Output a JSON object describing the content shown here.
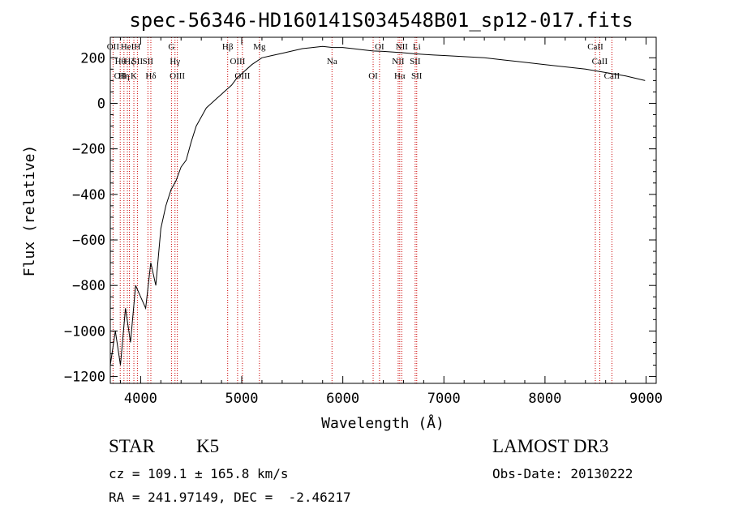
{
  "chart_data": {
    "type": "line",
    "title": "spec-56346-HD160141S034548B01_sp12-017.fits",
    "xlabel": "Wavelength (Å)",
    "ylabel": "Flux (relative)",
    "xlim": [
      3700,
      9100
    ],
    "ylim": [
      -1230,
      290
    ],
    "x_ticks": [
      4000,
      5000,
      6000,
      7000,
      8000,
      9000
    ],
    "y_ticks": [
      -1200,
      -1000,
      -800,
      -600,
      -400,
      -200,
      0,
      200
    ],
    "series": [
      {
        "x": [
          3700,
          3750,
          3800,
          3850,
          3900,
          3950,
          4000,
          4050,
          4100,
          4150,
          4200,
          4250,
          4300,
          4350,
          4400,
          4450,
          4500,
          4550,
          4600,
          4650,
          4700,
          4750,
          4800,
          4850,
          4900,
          4950,
          5000,
          5100,
          5200,
          5300,
          5400,
          5500,
          5600,
          5700,
          5800,
          5900,
          6000,
          6100,
          6200,
          6300,
          6400,
          6500,
          6600,
          6700,
          6800,
          6900,
          7000,
          7200,
          7400,
          7600,
          7800,
          8000,
          8200,
          8400,
          8600,
          8800,
          8990
        ],
        "y": [
          -1150,
          -1000,
          -1150,
          -900,
          -1050,
          -800,
          -850,
          -900,
          -700,
          -800,
          -550,
          -450,
          -380,
          -340,
          -280,
          -250,
          -170,
          -100,
          -60,
          -20,
          0,
          20,
          40,
          60,
          80,
          110,
          130,
          170,
          200,
          210,
          220,
          230,
          240,
          245,
          250,
          245,
          245,
          240,
          235,
          230,
          228,
          225,
          222,
          218,
          215,
          212,
          210,
          205,
          200,
          190,
          180,
          170,
          160,
          150,
          135,
          120,
          100
        ]
      }
    ],
    "lines": [
      {
        "x": 3727,
        "labels": [
          "OII"
        ]
      },
      {
        "x": 3798,
        "labels": [
          "Hθ",
          "OII"
        ]
      },
      {
        "x": 3835,
        "labels": [
          "Hη"
        ]
      },
      {
        "x": 3869,
        "labels": [
          "HeI"
        ]
      },
      {
        "x": 3889,
        "labels": [
          "Hζ"
        ]
      },
      {
        "x": 3933,
        "labels": [
          "K"
        ]
      },
      {
        "x": 3968,
        "labels": [
          "H",
          "SII"
        ]
      },
      {
        "x": 4072,
        "labels": [
          "SII"
        ]
      },
      {
        "x": 4101,
        "labels": [
          "Hδ"
        ]
      },
      {
        "x": 4305,
        "labels": [
          "G"
        ]
      },
      {
        "x": 4340,
        "labels": [
          "Hγ"
        ]
      },
      {
        "x": 4363,
        "labels": [
          "OIII"
        ]
      },
      {
        "x": 4861,
        "labels": [
          "Hβ"
        ]
      },
      {
        "x": 4959,
        "labels": [
          "OIII"
        ]
      },
      {
        "x": 5007,
        "labels": [
          "OIII"
        ]
      },
      {
        "x": 5175,
        "labels": [
          "Mg"
        ]
      },
      {
        "x": 5893,
        "labels": [
          "Na"
        ]
      },
      {
        "x": 6300,
        "labels": [
          "OI"
        ]
      },
      {
        "x": 6363,
        "labels": [
          "OI"
        ]
      },
      {
        "x": 6548,
        "labels": [
          "NII"
        ]
      },
      {
        "x": 6563,
        "labels": [
          "Hα"
        ]
      },
      {
        "x": 6583,
        "labels": [
          "NII"
        ]
      },
      {
        "x": 6716,
        "labels": [
          "SII"
        ]
      },
      {
        "x": 6731,
        "labels": [
          "SII",
          "Li"
        ]
      },
      {
        "x": 8498,
        "labels": [
          "CaII"
        ]
      },
      {
        "x": 8542,
        "labels": [
          "CaII"
        ]
      },
      {
        "x": 8662,
        "labels": [
          "CaII"
        ]
      }
    ],
    "grid": false
  },
  "info": {
    "object_class": "STAR",
    "subclass": "K5",
    "survey": "LAMOST DR3",
    "cz": "cz = 109.1 ± 165.8 km/s",
    "obs_date": "Obs-Date: 20130222",
    "coords": "RA = 241.97149, DEC =  -2.46217"
  },
  "colors": {
    "axes": "#000000",
    "spectrum": "#000000",
    "line_markers": "#cc0000"
  }
}
